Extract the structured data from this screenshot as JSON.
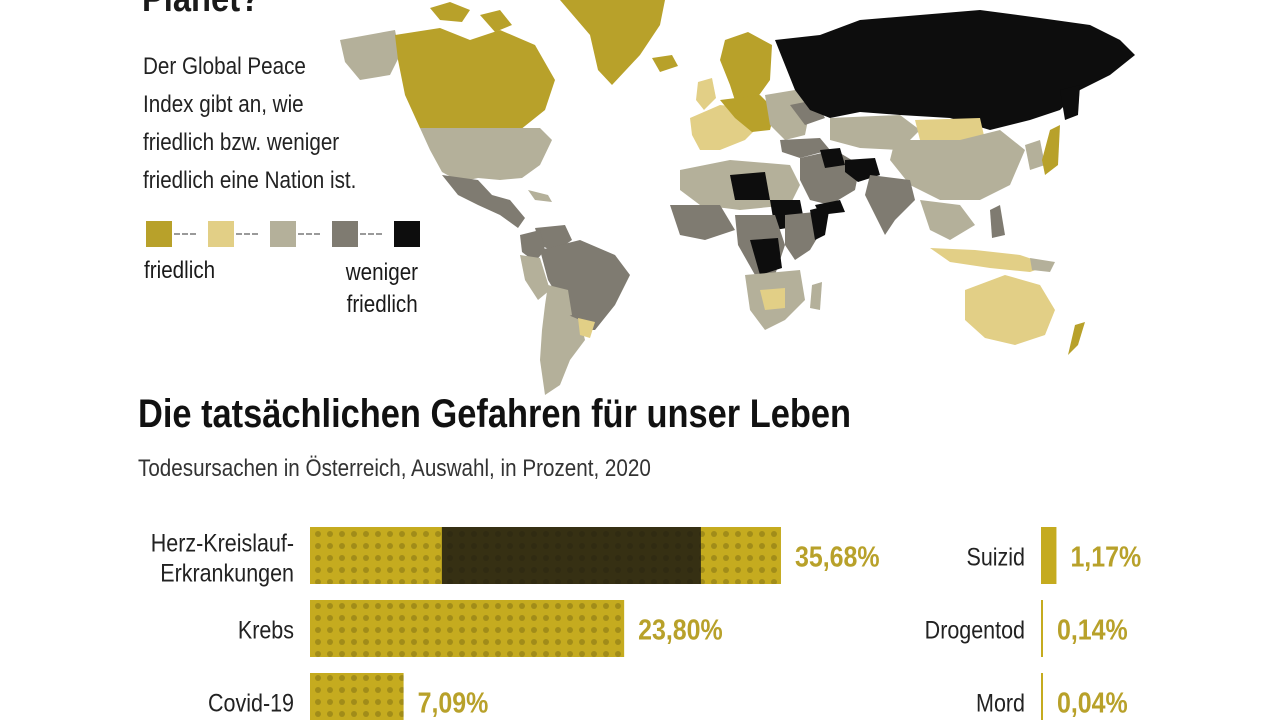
{
  "map_section": {
    "title": "Planet?",
    "intro_lines": [
      "Der Global Peace",
      "Index gibt an, wie",
      "friedlich bzw. weniger",
      "friedlich eine Nation ist."
    ],
    "legend": {
      "low_label": "friedlich",
      "high_label_lines": [
        "weniger",
        "friedlich"
      ],
      "colors": [
        "#b8a12a",
        "#e2cf86",
        "#b4b09a",
        "#7f7b71",
        "#0d0d0d"
      ]
    }
  },
  "colors": {
    "bar_fill": "#c5ab1f",
    "bar_dark": "#1c1a12",
    "value_text": "#b8a12a"
  },
  "chart_data": {
    "type": "bar",
    "orientation": "horizontal",
    "title": "Die tatsächlichen Gefahren für unser Leben",
    "subtitle": "Todesursachen in Österreich, Auswahl, in Prozent, 2020",
    "series": [
      {
        "categories": [
          "Herz-Kreislauf-Erkrankungen",
          "Krebs",
          "Covid-19"
        ],
        "label_lines": [
          [
            "Herz-Kreislauf-",
            "Erkrankungen"
          ],
          [
            "Krebs"
          ],
          [
            "Covid-19"
          ]
        ],
        "values": [
          35.68,
          23.8,
          7.09
        ],
        "value_labels": [
          "35,68%",
          "23,80%",
          "7,09%"
        ]
      },
      {
        "categories": [
          "Suizid",
          "Drogentod",
          "Mord"
        ],
        "label_lines": [
          [
            "Suizid"
          ],
          [
            "Drogentod"
          ],
          [
            "Mord"
          ]
        ],
        "values": [
          1.17,
          0.14,
          0.04
        ],
        "value_labels": [
          "1,17%",
          "0,14%",
          "0,04%"
        ]
      }
    ]
  }
}
